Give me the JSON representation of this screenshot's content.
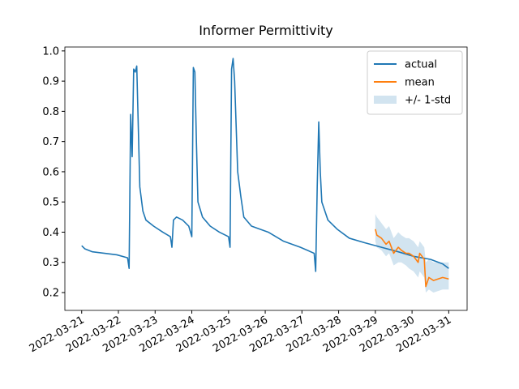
{
  "chart_data": {
    "type": "line",
    "title": "Informer Permittivity",
    "xlim": [
      "2022-03-20T13:00",
      "2022-03-31T12:00"
    ],
    "ylim": [
      0.141,
      1.013
    ],
    "xticks": [
      "2022-03-21",
      "2022-03-22",
      "2022-03-23",
      "2022-03-24",
      "2022-03-25",
      "2022-03-26",
      "2022-03-27",
      "2022-03-28",
      "2022-03-29",
      "2022-03-30",
      "2022-03-31"
    ],
    "yticks": [
      0.2,
      0.3,
      0.4,
      0.5,
      0.6,
      0.7,
      0.8,
      0.9,
      {
        "value": 1,
        "label": "1.0"
      }
    ],
    "legend": "upper right",
    "series": [
      {
        "name": "actual",
        "color": "#1f77b4",
        "x": [
          "2022-03-21T00:00",
          "2022-03-21T02:00",
          "2022-03-21T07:00",
          "2022-03-21T15:00",
          "2022-03-21T23:00",
          "2022-03-22T06:00",
          "2022-03-22T07:00",
          "2022-03-22T08:00",
          "2022-03-22T09:00",
          "2022-03-22T10:00",
          "2022-03-22T11:00",
          "2022-03-22T12:00",
          "2022-03-22T13:00",
          "2022-03-22T14:00",
          "2022-03-22T16:00",
          "2022-03-22T18:00",
          "2022-03-22T23:00",
          "2022-03-23T05:00",
          "2022-03-23T10:00",
          "2022-03-23T11:00",
          "2022-03-23T12:00",
          "2022-03-23T14:00",
          "2022-03-23T18:00",
          "2022-03-23T22:00",
          "2022-03-24T00:00",
          "2022-03-24T01:00",
          "2022-03-24T02:00",
          "2022-03-24T03:00",
          "2022-03-24T04:00",
          "2022-03-24T07:00",
          "2022-03-24T12:00",
          "2022-03-24T18:00",
          "2022-03-25T00:00",
          "2022-03-25T01:00",
          "2022-03-25T02:00",
          "2022-03-25T03:00",
          "2022-03-25T04:00",
          "2022-03-25T06:00",
          "2022-03-25T08:00",
          "2022-03-25T10:00",
          "2022-03-25T15:00",
          "2022-03-26T02:00",
          "2022-03-26T12:00",
          "2022-03-26T23:00",
          "2022-03-27T08:00",
          "2022-03-27T09:00",
          "2022-03-27T10:00",
          "2022-03-27T11:00",
          "2022-03-27T12:00",
          "2022-03-27T13:00",
          "2022-03-27T17:00",
          "2022-03-27T23:00",
          "2022-03-28T07:00",
          "2022-03-28T17:00",
          "2022-03-29T04:00",
          "2022-03-29T15:00",
          "2022-03-30T01:00",
          "2022-03-30T12:00",
          "2022-03-30T20:00",
          "2022-03-31T00:00"
        ],
        "values": [
          0.355,
          0.345,
          0.335,
          0.33,
          0.325,
          0.315,
          0.28,
          0.79,
          0.65,
          0.94,
          0.93,
          0.95,
          0.75,
          0.55,
          0.47,
          0.44,
          0.42,
          0.4,
          0.385,
          0.35,
          0.44,
          0.45,
          0.44,
          0.42,
          0.385,
          0.945,
          0.93,
          0.7,
          0.5,
          0.45,
          0.42,
          0.4,
          0.385,
          0.35,
          0.94,
          0.975,
          0.9,
          0.6,
          0.52,
          0.45,
          0.42,
          0.4,
          0.37,
          0.35,
          0.33,
          0.27,
          0.55,
          0.765,
          0.6,
          0.5,
          0.44,
          0.41,
          0.38,
          0.365,
          0.35,
          0.335,
          0.32,
          0.31,
          0.295,
          0.28
        ]
      },
      {
        "name": "mean",
        "color": "#ff7f0e",
        "x": [
          "2022-03-29T00:00",
          "2022-03-29T01:00",
          "2022-03-29T04:00",
          "2022-03-29T07:00",
          "2022-03-29T09:00",
          "2022-03-29T12:00",
          "2022-03-29T15:00",
          "2022-03-29T17:00",
          "2022-03-29T20:00",
          "2022-03-29T22:00",
          "2022-03-30T01:00",
          "2022-03-30T04:00",
          "2022-03-30T05:00",
          "2022-03-30T08:00",
          "2022-03-30T09:00",
          "2022-03-30T11:00",
          "2022-03-30T14:00",
          "2022-03-30T20:00",
          "2022-03-31T00:00"
        ],
        "values": [
          0.41,
          0.39,
          0.38,
          0.36,
          0.37,
          0.33,
          0.35,
          0.34,
          0.33,
          0.33,
          0.32,
          0.3,
          0.33,
          0.31,
          0.22,
          0.25,
          0.24,
          0.25,
          0.245
        ]
      },
      {
        "name": "+/- 1-std",
        "color": "#1f77b4",
        "x": [
          "2022-03-29T00:00",
          "2022-03-29T01:00",
          "2022-03-29T04:00",
          "2022-03-29T07:00",
          "2022-03-29T09:00",
          "2022-03-29T12:00",
          "2022-03-29T15:00",
          "2022-03-29T17:00",
          "2022-03-29T20:00",
          "2022-03-29T22:00",
          "2022-03-30T01:00",
          "2022-03-30T04:00",
          "2022-03-30T05:00",
          "2022-03-30T08:00",
          "2022-03-30T09:00",
          "2022-03-30T11:00",
          "2022-03-30T14:00",
          "2022-03-30T20:00",
          "2022-03-31T00:00"
        ],
        "upper": [
          0.46,
          0.45,
          0.43,
          0.41,
          0.42,
          0.38,
          0.4,
          0.39,
          0.38,
          0.38,
          0.37,
          0.35,
          0.37,
          0.35,
          0.3,
          0.31,
          0.3,
          0.3,
          0.3
        ],
        "lower": [
          0.37,
          0.35,
          0.34,
          0.32,
          0.33,
          0.29,
          0.3,
          0.3,
          0.29,
          0.28,
          0.27,
          0.25,
          0.27,
          0.25,
          0.2,
          0.21,
          0.2,
          0.21,
          0.21
        ]
      }
    ]
  }
}
